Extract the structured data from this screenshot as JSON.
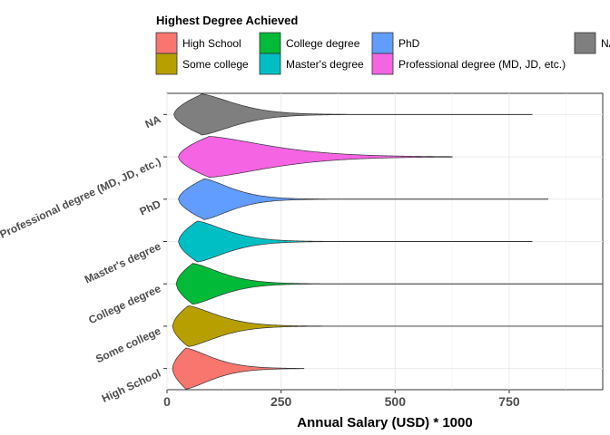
{
  "chart_data": {
    "type": "violin",
    "orientation": "horizontal",
    "xlabel": "Annual Salary (USD) * 1000",
    "xlim": [
      0,
      955
    ],
    "x_ticks": [
      0,
      250,
      500,
      750
    ],
    "x_tick_labels": [
      "0",
      "250",
      "500",
      "750"
    ],
    "grid": true,
    "legend": {
      "title": "Highest Degree Achieved",
      "placement": "top",
      "entries": [
        {
          "label": "High School",
          "color": "#F8766D"
        },
        {
          "label": "College degree",
          "color": "#00BA38"
        },
        {
          "label": "PhD",
          "color": "#619CFF"
        },
        {
          "label": "NA",
          "color": "#7F7F7F"
        },
        {
          "label": "Some college",
          "color": "#B79F00"
        },
        {
          "label": "Master's degree",
          "color": "#00BFC4"
        },
        {
          "label": "Professional degree (MD, JD, etc.)",
          "color": "#F564E3"
        }
      ]
    },
    "series": [
      {
        "category": "High School",
        "color": "#F8766D",
        "min": 12,
        "max": 300,
        "mode": 40,
        "body_end": 220
      },
      {
        "category": "Some college",
        "color": "#B79F00",
        "min": 12,
        "max": 955,
        "mode": 45,
        "body_end": 245
      },
      {
        "category": "College degree",
        "color": "#00BA38",
        "min": 20,
        "max": 955,
        "mode": 55,
        "body_end": 250
      },
      {
        "category": "Master's degree",
        "color": "#00BFC4",
        "min": 25,
        "max": 800,
        "mode": 65,
        "body_end": 265
      },
      {
        "category": "PhD",
        "color": "#619CFF",
        "min": 25,
        "max": 835,
        "mode": 80,
        "body_end": 265
      },
      {
        "category": "Professional degree (MD, JD, etc.)",
        "color": "#F564E3",
        "min": 25,
        "max": 625,
        "mode": 90,
        "body_end": 500
      },
      {
        "category": "NA",
        "color": "#7F7F7F",
        "min": 15,
        "max": 800,
        "mode": 75,
        "body_end": 300
      }
    ]
  }
}
